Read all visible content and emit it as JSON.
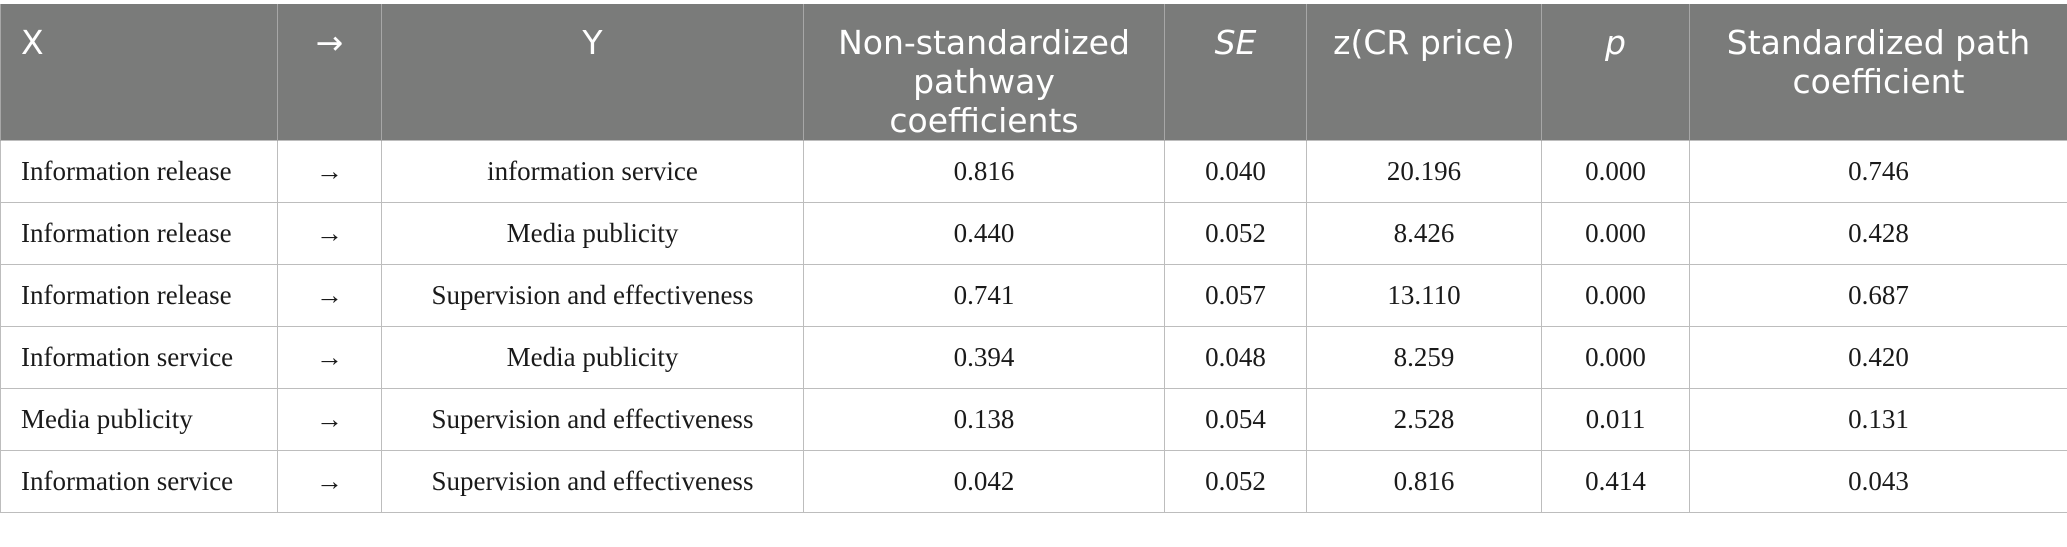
{
  "table": {
    "headers": [
      "X",
      "→",
      "Y",
      "Non-standardized pathway coefficients",
      "SE",
      "z(CR price)",
      "p",
      "Standardized path coefficient"
    ],
    "rows": [
      [
        "Information release",
        "→",
        "information service",
        "0.816",
        "0.040",
        "20.196",
        "0.000",
        "0.746"
      ],
      [
        "Information release",
        "→",
        "Media publicity",
        "0.440",
        "0.052",
        "8.426",
        "0.000",
        "0.428"
      ],
      [
        "Information release",
        "→",
        "Supervision and effectiveness",
        "0.741",
        "0.057",
        "13.110",
        "0.000",
        "0.687"
      ],
      [
        "Information service",
        "→",
        "Media publicity",
        "0.394",
        "0.048",
        "8.259",
        "0.000",
        "0.420"
      ],
      [
        "Media publicity",
        "→",
        "Supervision and effectiveness",
        "0.138",
        "0.054",
        "2.528",
        "0.011",
        "0.131"
      ],
      [
        "Information service",
        "→",
        "Supervision and effectiveness",
        "0.042",
        "0.052",
        "0.816",
        "0.414",
        "0.043"
      ]
    ]
  },
  "colors": {
    "header_background": "#7a7b7a",
    "header_text": "#ffffff",
    "grid_line": "#bdbdbd"
  }
}
